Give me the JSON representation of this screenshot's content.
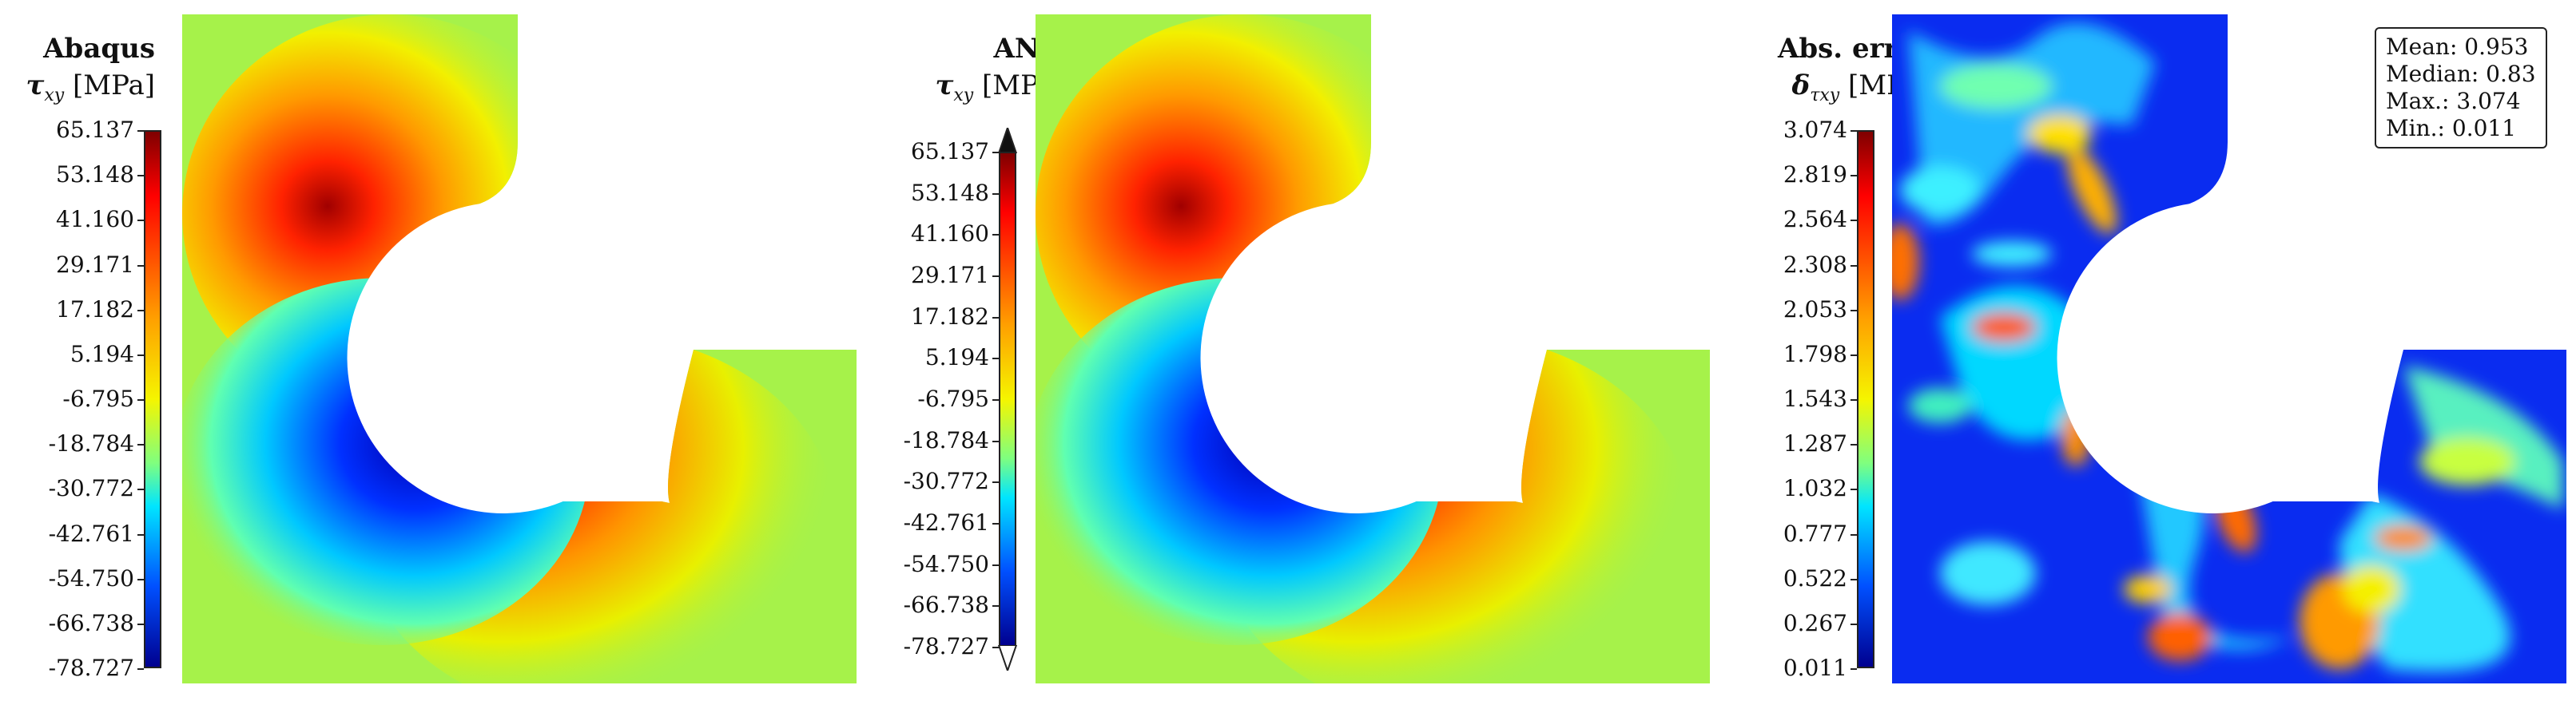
{
  "panels": [
    {
      "title": "Abaqus",
      "quantity_symbol": "τ",
      "quantity_sub": "xy",
      "unit": "[MPa]",
      "ticks": [
        "65.137",
        "53.148",
        "41.160",
        "29.171",
        "17.182",
        "5.194",
        "-6.795",
        "-18.784",
        "-30.772",
        "-42.761",
        "-54.750",
        "-66.738",
        "-78.727"
      ]
    },
    {
      "title": "ANN",
      "quantity_symbol": "τ",
      "quantity_sub": "xy",
      "unit": "[MPa]",
      "ticks": [
        "65.137",
        "53.148",
        "41.160",
        "29.171",
        "17.182",
        "5.194",
        "-6.795",
        "-18.784",
        "-30.772",
        "-42.761",
        "-54.750",
        "-66.738",
        "-78.727"
      ]
    },
    {
      "title": "Abs. error",
      "quantity_symbol": "δ",
      "quantity_sub": "τxy",
      "unit": "[MPa]",
      "ticks": [
        "3.074",
        "2.819",
        "2.564",
        "2.308",
        "2.053",
        "1.798",
        "1.543",
        "1.287",
        "1.032",
        "0.777",
        "0.522",
        "0.267",
        "0.011"
      ]
    }
  ],
  "stats": {
    "mean": "Mean: 0.953",
    "median": "Median: 0.83",
    "max": "Max.: 3.074",
    "min": "Min.: 0.011"
  },
  "colors": {
    "background": "#a6f24a",
    "hole": "#ffffff"
  }
}
